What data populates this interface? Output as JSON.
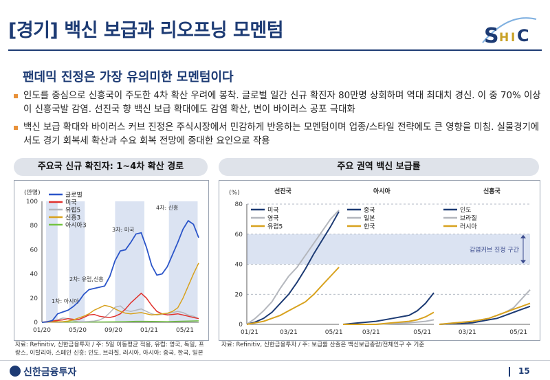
{
  "header": {
    "title": "[경기] 백신 보급과 리오프닝 모멘텀",
    "logo_text": "SHIC"
  },
  "subtitle": "팬데믹 진정은 가장 유의미한 모멘텀이다",
  "bullets": [
    "인도를 중심으로 신흥국이 주도한 4차 확산 우려에 봉착. 글로벌 일간 신규 확진자 80만명 상회하며 역대 최대치 경신. 이 중 70% 이상이 신흥국발 감염. 선진국 향 백신 보급 확대에도 감염 확산, 변이 바이러스 공포 극대화",
    "백신 보급 확대와 바이러스 커브 진정은 주식시장에서 민감하게 반응하는 모멘텀이며 업종/스타일 전략에도 큰 영향을 미침. 실물경기에서도 경기 회복세 확산과 수요 회복 전망에 중대한 요인으로 작용"
  ],
  "left_panel": {
    "title": "주요국 신규 확진자: 1~4차 확산 경로",
    "source": "자료: Refinitiv, 신한금융투자 / 주: 5일 이동평균 적용,   유럽: 영국, 독일, 프랑스, 이탈리아, 스페인 신흥: 인도, 브라질, 러시아, 아시아: 중국, 한국, 일본"
  },
  "right_panel": {
    "title": "주요 권역 백신 보급률",
    "source": "자료: Refinitiv, 신한금융투자 / 주: 보급률 산출은 백신보급총량/전체인구 수 기준"
  },
  "footer": {
    "brand": "신한금융투자",
    "page": "15"
  },
  "colors": {
    "navy": "#1d3b74",
    "blue": "#2b55c9",
    "red": "#e0322d",
    "gray": "#b4b7bd",
    "gold": "#d8a21e",
    "green": "#74c442",
    "band": "#dbe3f2"
  },
  "chart_data": [
    {
      "type": "line",
      "title": "주요국 신규 확진자: 1~4차 확산 경로",
      "ylabel": "(만명)",
      "ylim": [
        0,
        100
      ],
      "yticks": [
        0,
        20,
        40,
        60,
        80,
        100
      ],
      "xticks": [
        "01/20",
        "05/20",
        "09/20",
        "01/21",
        "05/21"
      ],
      "x_range": [
        "2020-01",
        "2021-05"
      ],
      "series": [
        {
          "name": "글로벌",
          "color": "#2b55c9",
          "points": [
            [
              0,
              0
            ],
            [
              1,
              0.3
            ],
            [
              2,
              1.5
            ],
            [
              3,
              7
            ],
            [
              4,
              8.5
            ],
            [
              5,
              10
            ],
            [
              6,
              13
            ],
            [
              7,
              17
            ],
            [
              8,
              23
            ],
            [
              9,
              27
            ],
            [
              10,
              28
            ],
            [
              11,
              29
            ],
            [
              12,
              30
            ],
            [
              13,
              38
            ],
            [
              14,
              51
            ],
            [
              15,
              59
            ],
            [
              16,
              60
            ],
            [
              17,
              66
            ],
            [
              18,
              73
            ],
            [
              19,
              74
            ],
            [
              20,
              62
            ],
            [
              21,
              47
            ],
            [
              22,
              39
            ],
            [
              23,
              40
            ],
            [
              24,
              46
            ],
            [
              25,
              56
            ],
            [
              26,
              66
            ],
            [
              27,
              77
            ],
            [
              28,
              84
            ],
            [
              29,
              81
            ],
            [
              30,
              70
            ]
          ]
        },
        {
          "name": "미국",
          "color": "#e0322d",
          "points": [
            [
              0,
              0
            ],
            [
              4,
              2
            ],
            [
              5,
              3
            ],
            [
              6,
              2.5
            ],
            [
              7,
              2.2
            ],
            [
              8,
              4
            ],
            [
              9,
              6
            ],
            [
              10,
              6.5
            ],
            [
              11,
              5
            ],
            [
              12,
              4.3
            ],
            [
              13,
              4
            ],
            [
              14,
              5
            ],
            [
              15,
              7
            ],
            [
              16,
              11
            ],
            [
              17,
              16
            ],
            [
              18,
              20
            ],
            [
              19,
              24
            ],
            [
              20,
              20
            ],
            [
              21,
              14
            ],
            [
              22,
              9
            ],
            [
              23,
              7
            ],
            [
              24,
              6
            ],
            [
              25,
              6.5
            ],
            [
              26,
              7
            ],
            [
              27,
              6
            ],
            [
              28,
              5
            ],
            [
              29,
              4
            ],
            [
              30,
              3
            ]
          ]
        },
        {
          "name": "유럽5",
          "color": "#b4b7bd",
          "points": [
            [
              0,
              0
            ],
            [
              3,
              2
            ],
            [
              4,
              3.5
            ],
            [
              5,
              3
            ],
            [
              6,
              1.5
            ],
            [
              7,
              0.5
            ],
            [
              8,
              0.5
            ],
            [
              9,
              0.7
            ],
            [
              10,
              1
            ],
            [
              11,
              1.8
            ],
            [
              12,
              4
            ],
            [
              13,
              8
            ],
            [
              14,
              12.5
            ],
            [
              15,
              13.5
            ],
            [
              16,
              10
            ],
            [
              17,
              9
            ],
            [
              18,
              10
            ],
            [
              19,
              11
            ],
            [
              20,
              9
            ],
            [
              21,
              7
            ],
            [
              22,
              6
            ],
            [
              23,
              6.5
            ],
            [
              24,
              7
            ],
            [
              25,
              8
            ],
            [
              26,
              9
            ],
            [
              27,
              8
            ],
            [
              28,
              6
            ],
            [
              29,
              5
            ],
            [
              30,
              3
            ]
          ]
        },
        {
          "name": "신흥3",
          "color": "#d8a21e",
          "points": [
            [
              0,
              0
            ],
            [
              4,
              0.5
            ],
            [
              5,
              1
            ],
            [
              6,
              2
            ],
            [
              7,
              3.5
            ],
            [
              8,
              5
            ],
            [
              9,
              7
            ],
            [
              10,
              10
            ],
            [
              11,
              12
            ],
            [
              12,
              14
            ],
            [
              13,
              13
            ],
            [
              14,
              11
            ],
            [
              15,
              9
            ],
            [
              16,
              7.5
            ],
            [
              17,
              7
            ],
            [
              18,
              7.5
            ],
            [
              19,
              8
            ],
            [
              20,
              7
            ],
            [
              21,
              6
            ],
            [
              22,
              6.5
            ],
            [
              23,
              7
            ],
            [
              24,
              7.5
            ],
            [
              25,
              9
            ],
            [
              26,
              12
            ],
            [
              27,
              20
            ],
            [
              28,
              30
            ],
            [
              29,
              40
            ],
            [
              30,
              49
            ]
          ]
        },
        {
          "name": "아시아3",
          "color": "#74c442",
          "points": [
            [
              0,
              0
            ],
            [
              1,
              0.3
            ],
            [
              2,
              1
            ],
            [
              3,
              0.5
            ],
            [
              4,
              0.3
            ],
            [
              8,
              0.2
            ],
            [
              12,
              0.3
            ],
            [
              16,
              0.5
            ],
            [
              18,
              0.8
            ],
            [
              20,
              0.8
            ],
            [
              24,
              0.5
            ],
            [
              28,
              1
            ],
            [
              30,
              1.2
            ]
          ]
        }
      ],
      "waves": [
        {
          "label": "1차: 아시아",
          "range": [
            0.8,
            3
          ]
        },
        {
          "label": "2차: 유럽,신흥",
          "range": [
            5.2,
            8.2
          ]
        },
        {
          "label": "3차: 미국",
          "range": [
            14,
            19.6
          ]
        },
        {
          "label": "4차: 신흥",
          "range": [
            24.3,
            29.8
          ]
        }
      ]
    },
    {
      "type": "line",
      "title": "주요 권역 백신 보급률",
      "ylabel": "(%)",
      "ylim": [
        0,
        80
      ],
      "yticks": [
        0,
        20,
        40,
        60,
        80
      ],
      "band": {
        "range": [
          40,
          60
        ],
        "label": "감염커브 진정 구간"
      },
      "panels": [
        {
          "name": "선진국",
          "xticks": [
            "01/21",
            "03/21",
            "05/21"
          ],
          "series": [
            {
              "name": "미국",
              "color": "#1d3b74",
              "points": [
                [
                  0,
                  0
                ],
                [
                  0.5,
                  1.5
                ],
                [
                  1,
                  4
                ],
                [
                  1.5,
                  8
                ],
                [
                  2,
                  14
                ],
                [
                  2.5,
                  20
                ],
                [
                  3,
                  28
                ],
                [
                  3.5,
                  37
                ],
                [
                  4,
                  47
                ],
                [
                  4.5,
                  56
                ],
                [
                  5,
                  65
                ],
                [
                  5.5,
                  75
                ]
              ]
            },
            {
              "name": "영국",
              "color": "#b4b7bd",
              "points": [
                [
                  0,
                  0
                ],
                [
                  0.5,
                  4
                ],
                [
                  1,
                  9
                ],
                [
                  1.5,
                  15
                ],
                [
                  2,
                  24
                ],
                [
                  2.5,
                  32
                ],
                [
                  3,
                  38
                ],
                [
                  3.5,
                  46
                ],
                [
                  4,
                  54
                ],
                [
                  4.5,
                  62
                ],
                [
                  5,
                  70
                ],
                [
                  5.5,
                  76
                ]
              ]
            },
            {
              "name": "유럽5",
              "color": "#d8a21e",
              "points": [
                [
                  0,
                  0
                ],
                [
                  0.5,
                  1
                ],
                [
                  1,
                  2
                ],
                [
                  1.5,
                  4
                ],
                [
                  2,
                  6
                ],
                [
                  2.5,
                  9
                ],
                [
                  3,
                  12
                ],
                [
                  3.5,
                  15
                ],
                [
                  4,
                  20
                ],
                [
                  4.5,
                  26
                ],
                [
                  5,
                  32
                ],
                [
                  5.5,
                  38
                ]
              ]
            }
          ]
        },
        {
          "name": "아시아",
          "xticks": [
            "03/21",
            "05/21"
          ],
          "series": [
            {
              "name": "중국",
              "color": "#1d3b74",
              "points": [
                [
                  0,
                  0
                ],
                [
                  1,
                  1
                ],
                [
                  2,
                  2
                ],
                [
                  3,
                  4
                ],
                [
                  3.5,
                  5
                ],
                [
                  4,
                  6
                ],
                [
                  4.5,
                  9
                ],
                [
                  5,
                  14
                ],
                [
                  5.5,
                  21
                ]
              ]
            },
            {
              "name": "일본",
              "color": "#b4b7bd",
              "points": [
                [
                  0,
                  0
                ],
                [
                  2,
                  0
                ],
                [
                  3,
                  0.5
                ],
                [
                  4,
                  1
                ],
                [
                  5,
                  2
                ],
                [
                  5.5,
                  3
                ]
              ]
            },
            {
              "name": "한국",
              "color": "#d8a21e",
              "points": [
                [
                  0,
                  0
                ],
                [
                  2,
                  0
                ],
                [
                  3,
                  1
                ],
                [
                  4,
                  2
                ],
                [
                  4.5,
                  3
                ],
                [
                  5,
                  5
                ],
                [
                  5.5,
                  8
                ]
              ]
            }
          ]
        },
        {
          "name": "신흥국",
          "xticks": [
            "03/21",
            "05/21"
          ],
          "series": [
            {
              "name": "인도",
              "color": "#1d3b74",
              "points": [
                [
                  0,
                  0
                ],
                [
                  1,
                  0.5
                ],
                [
                  2,
                  1
                ],
                [
                  3,
                  3
                ],
                [
                  3.5,
                  4
                ],
                [
                  4,
                  6
                ],
                [
                  4.5,
                  8
                ],
                [
                  5,
                  10
                ],
                [
                  5.5,
                  12
                ]
              ]
            },
            {
              "name": "브라질",
              "color": "#b4b7bd",
              "points": [
                [
                  0,
                  0
                ],
                [
                  1,
                  1
                ],
                [
                  2,
                  2
                ],
                [
                  3,
                  4
                ],
                [
                  3.5,
                  6
                ],
                [
                  4,
                  8
                ],
                [
                  4.5,
                  11
                ],
                [
                  5,
                  17
                ],
                [
                  5.5,
                  23
                ]
              ]
            },
            {
              "name": "러시아",
              "color": "#d8a21e",
              "points": [
                [
                  0,
                  0
                ],
                [
                  1,
                  1
                ],
                [
                  2,
                  2
                ],
                [
                  3,
                  4
                ],
                [
                  3.5,
                  6
                ],
                [
                  4,
                  8
                ],
                [
                  4.5,
                  10
                ],
                [
                  5,
                  12
                ],
                [
                  5.5,
                  14
                ]
              ]
            }
          ]
        }
      ]
    }
  ]
}
